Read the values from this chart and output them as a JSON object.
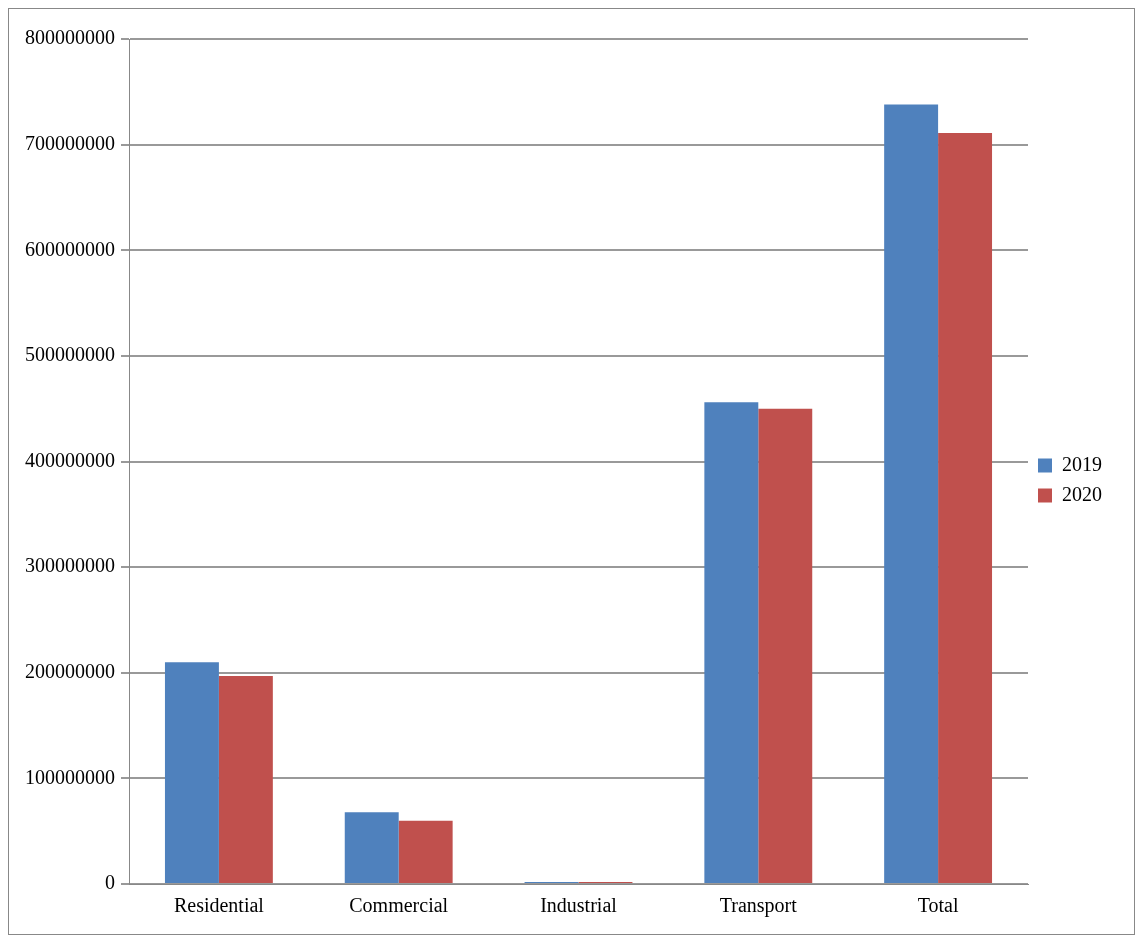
{
  "chart_data": {
    "type": "bar",
    "categories": [
      "Residential",
      "Commercial",
      "Industrial",
      "Transport",
      "Total"
    ],
    "series": [
      {
        "name": "2019",
        "color": "#4f81bd",
        "values": [
          210000000,
          68000000,
          2000000,
          456000000,
          738000000
        ]
      },
      {
        "name": "2020",
        "color": "#c0504d",
        "values": [
          197000000,
          60000000,
          2000000,
          450000000,
          711000000
        ]
      }
    ],
    "ylim": [
      0,
      800000000
    ],
    "yticks": [
      0,
      100000000,
      200000000,
      300000000,
      400000000,
      500000000,
      600000000,
      700000000,
      800000000
    ],
    "grid": "y",
    "legend": "right"
  }
}
